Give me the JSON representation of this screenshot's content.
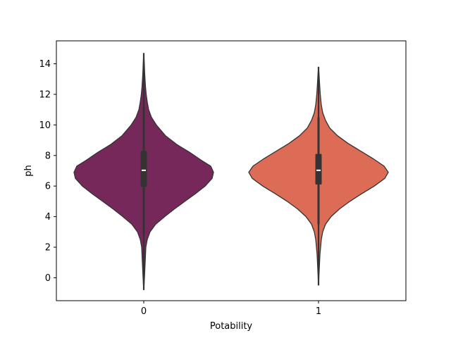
{
  "chart_data": {
    "type": "violin",
    "xlabel": "Potability",
    "ylabel": "ph",
    "categories": [
      "0",
      "1"
    ],
    "ylim": [
      -1.5,
      15.5
    ],
    "yticks": [
      0,
      2,
      4,
      6,
      8,
      10,
      12,
      14
    ],
    "grid": false,
    "violins": [
      {
        "category": "0",
        "color": "#76285a",
        "extent": [
          -0.8,
          14.7
        ],
        "q1": 5.95,
        "median": 7.03,
        "q3": 8.3,
        "whisker_low": 2.9,
        "whisker_high": 11.2,
        "density_profile": [
          [
            -0.8,
            0.0
          ],
          [
            0.0,
            0.01
          ],
          [
            1.0,
            0.02
          ],
          [
            2.0,
            0.03
          ],
          [
            2.5,
            0.05
          ],
          [
            3.0,
            0.09
          ],
          [
            3.5,
            0.17
          ],
          [
            4.0,
            0.3
          ],
          [
            4.5,
            0.44
          ],
          [
            5.0,
            0.59
          ],
          [
            5.5,
            0.74
          ],
          [
            6.0,
            0.88
          ],
          [
            6.5,
            0.98
          ],
          [
            6.9,
            1.0
          ],
          [
            7.3,
            0.96
          ],
          [
            7.7,
            0.82
          ],
          [
            8.2,
            0.66
          ],
          [
            8.7,
            0.48
          ],
          [
            9.3,
            0.31
          ],
          [
            10.0,
            0.18
          ],
          [
            10.5,
            0.11
          ],
          [
            11.0,
            0.07
          ],
          [
            11.5,
            0.05
          ],
          [
            12.0,
            0.035
          ],
          [
            12.5,
            0.025
          ],
          [
            13.0,
            0.018
          ],
          [
            13.5,
            0.012
          ],
          [
            14.0,
            0.008
          ],
          [
            14.7,
            0.0
          ]
        ]
      },
      {
        "category": "1",
        "color": "#dd6c57",
        "extent": [
          -0.5,
          13.8
        ],
        "q1": 6.1,
        "median": 7.03,
        "q3": 8.1,
        "whisker_low": 3.5,
        "whisker_high": 10.5,
        "density_profile": [
          [
            -0.5,
            0.0
          ],
          [
            0.5,
            0.01
          ],
          [
            1.5,
            0.02
          ],
          [
            2.5,
            0.04
          ],
          [
            3.0,
            0.06
          ],
          [
            3.5,
            0.1
          ],
          [
            4.0,
            0.18
          ],
          [
            4.5,
            0.3
          ],
          [
            5.0,
            0.45
          ],
          [
            5.5,
            0.62
          ],
          [
            6.0,
            0.8
          ],
          [
            6.5,
            0.95
          ],
          [
            6.9,
            1.0
          ],
          [
            7.3,
            0.94
          ],
          [
            7.8,
            0.78
          ],
          [
            8.3,
            0.6
          ],
          [
            8.8,
            0.42
          ],
          [
            9.3,
            0.27
          ],
          [
            9.8,
            0.16
          ],
          [
            10.3,
            0.1
          ],
          [
            10.8,
            0.06
          ],
          [
            11.3,
            0.04
          ],
          [
            12.0,
            0.025
          ],
          [
            12.7,
            0.015
          ],
          [
            13.3,
            0.008
          ],
          [
            13.8,
            0.0
          ]
        ]
      }
    ]
  }
}
